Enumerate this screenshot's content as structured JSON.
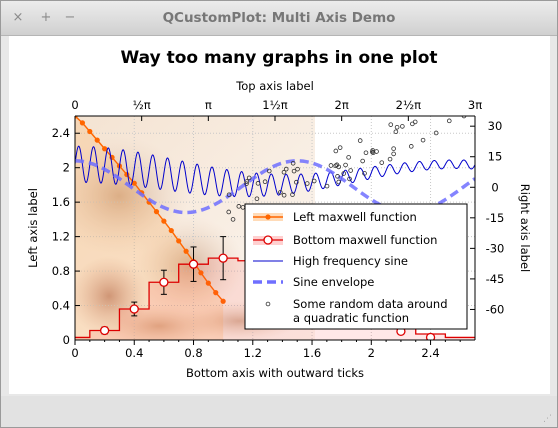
{
  "window": {
    "title": "QCustomPlot: Multi Axis Demo",
    "buttons": [
      "×",
      "+",
      "−"
    ]
  },
  "chart_data": {
    "title": "Way too many graphs in one plot",
    "bottom_axis": {
      "label": "Bottom axis with outward ticks",
      "range": [
        0,
        2.7
      ],
      "ticks": [
        "0",
        "0.4",
        "0.8",
        "1.2",
        "1.6",
        "2",
        "2.4"
      ]
    },
    "left_axis": {
      "label": "Left axis label",
      "range": [
        0,
        2.6
      ],
      "ticks": [
        "0",
        "0.4",
        "0.8",
        "1.2",
        "1.6",
        "2",
        "2.4"
      ]
    },
    "top_axis": {
      "label": "Top axis label",
      "range": [
        0,
        3.1416
      ],
      "ticks": [
        "0",
        "½π",
        "π",
        "1½π",
        "2π",
        "2½π",
        "3π"
      ]
    },
    "right_axis": {
      "label": "Right axis label",
      "range": [
        -75,
        35
      ],
      "ticks": [
        "30",
        "15",
        "0",
        "-15",
        "-30",
        "-45",
        "-60"
      ]
    },
    "grid": true,
    "legend_position": "bottom-right",
    "series": [
      {
        "name": "Left maxwell function",
        "type": "line",
        "color": "#ff6600",
        "x": [
          0,
          0.05,
          0.1,
          0.15,
          0.2,
          0.25,
          0.3,
          0.35,
          0.4,
          0.45,
          0.5,
          0.55,
          0.6,
          0.65,
          0.7,
          0.75,
          0.8,
          0.85,
          0.9,
          0.95,
          1.0
        ],
        "y": [
          2.6,
          2.52,
          2.42,
          2.32,
          2.22,
          2.12,
          2.02,
          1.92,
          1.82,
          1.71,
          1.6,
          1.49,
          1.38,
          1.27,
          1.15,
          1.03,
          0.91,
          0.78,
          0.66,
          0.55,
          0.45
        ]
      },
      {
        "name": "Bottom maxwell function",
        "type": "step",
        "color": "#dd0000",
        "x": [
          0.2,
          0.4,
          0.6,
          0.8,
          1.0,
          2.2,
          2.4
        ],
        "y": [
          0.11,
          0.36,
          0.67,
          0.88,
          0.95,
          0.1,
          0.03
        ],
        "err": [
          0.04,
          0.08,
          0.14,
          0.2,
          0.25,
          0.02,
          0.02
        ]
      },
      {
        "name": "High frequency sine",
        "type": "line",
        "color": "#0000cc"
      },
      {
        "name": "Sine envelope",
        "type": "line",
        "color": "#7777ff"
      },
      {
        "name": "Some random data around\na quadratic function",
        "type": "scatter",
        "color": "#333333"
      }
    ]
  }
}
